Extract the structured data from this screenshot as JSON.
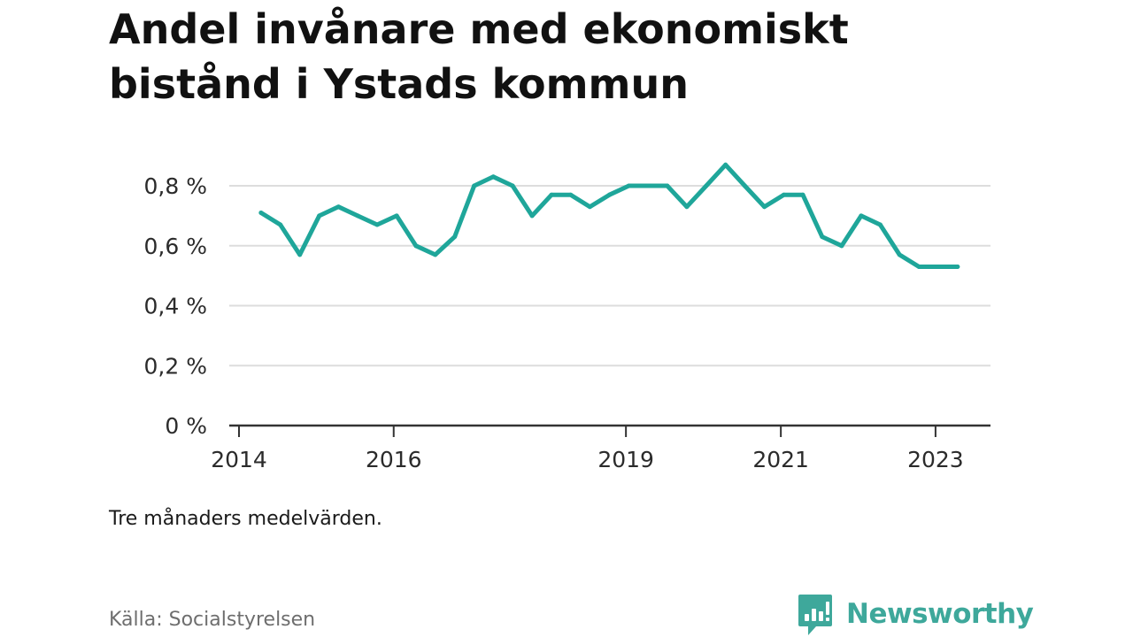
{
  "title": "Andel invånare med ekonomiskt bistånd i Ystads kommun",
  "note": "Tre månaders medelvärden.",
  "source": "Källa: Socialstyrelsen",
  "brand": {
    "name": "Newsworthy",
    "color": "#3ea89b"
  },
  "colors": {
    "line": "#1fa69a",
    "grid": "#dddddd",
    "axis": "#333333"
  },
  "chart_data": {
    "type": "line",
    "title": "Andel invånare med ekonomiskt bistånd i Ystads kommun",
    "xlabel": "",
    "ylabel": "",
    "ylim": [
      0,
      0.8
    ],
    "xlim": [
      "2014-01-01",
      "2023-06-30"
    ],
    "y_ticks": [
      {
        "value": 0,
        "label": "0 %"
      },
      {
        "value": 0.2,
        "label": "0,2 %"
      },
      {
        "value": 0.4,
        "label": "0,4 %"
      },
      {
        "value": 0.6,
        "label": "0,6 %"
      },
      {
        "value": 0.8,
        "label": "0,8 %"
      }
    ],
    "x_ticks": [
      {
        "value": "2014-01-01",
        "label": "2014"
      },
      {
        "value": "2016-01-01",
        "label": "2016"
      },
      {
        "value": "2019-01-01",
        "label": "2019"
      },
      {
        "value": "2021-01-01",
        "label": "2021"
      },
      {
        "value": "2023-01-01",
        "label": "2023"
      }
    ],
    "grid": true,
    "legend": "none",
    "series": [
      {
        "x": [
          "2014-04-15",
          "2014-07-15",
          "2014-10-15",
          "2015-01-15",
          "2015-04-15",
          "2015-07-15",
          "2015-10-15",
          "2016-01-15",
          "2016-04-15",
          "2016-07-15",
          "2016-10-15",
          "2017-01-15",
          "2017-04-15",
          "2017-07-15",
          "2017-10-15",
          "2018-01-15",
          "2018-04-15",
          "2018-07-15",
          "2018-10-15",
          "2019-01-15",
          "2019-04-15",
          "2019-07-15",
          "2019-10-15",
          "2020-01-15",
          "2020-04-15",
          "2020-07-15",
          "2020-10-15",
          "2021-01-15",
          "2021-04-15",
          "2021-07-15",
          "2021-10-15",
          "2022-01-15",
          "2022-04-15",
          "2022-07-15",
          "2022-10-15",
          "2023-01-15",
          "2023-04-15"
        ],
        "values": [
          0.71,
          0.67,
          0.57,
          0.7,
          0.73,
          0.7,
          0.67,
          0.7,
          0.6,
          0.57,
          0.63,
          0.8,
          0.83,
          0.8,
          0.7,
          0.77,
          0.77,
          0.73,
          0.77,
          0.8,
          0.8,
          0.8,
          0.73,
          0.8,
          0.87,
          0.8,
          0.73,
          0.77,
          0.77,
          0.63,
          0.6,
          0.7,
          0.67,
          0.57,
          0.53,
          0.53,
          0.53
        ]
      }
    ]
  }
}
